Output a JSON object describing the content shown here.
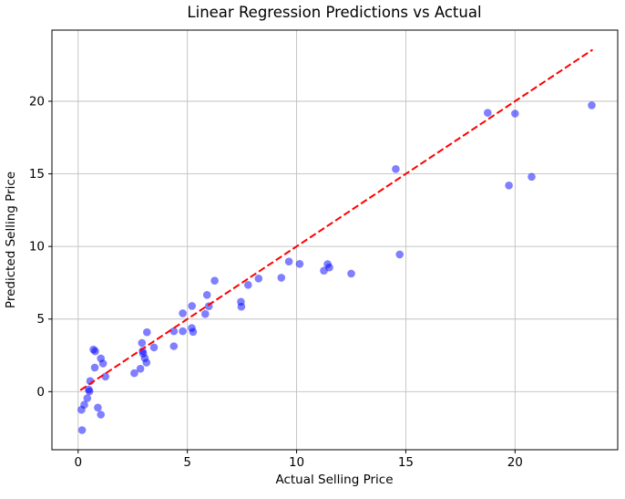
{
  "figure": {
    "title": "Linear Regression Predictions vs Actual",
    "xlabel": "Actual Selling Price",
    "ylabel": "Predicted Selling Price"
  },
  "colors": {
    "point_fill": "#0000ff",
    "point_alpha": 0.5,
    "reference_line": "#ff0000",
    "grid": "#c0c0c0",
    "spine": "#000000",
    "background": "#ffffff"
  },
  "chart_data": {
    "type": "scatter",
    "title": "Linear Regression Predictions vs Actual",
    "xlabel": "Actual Selling Price",
    "ylabel": "Predicted Selling Price",
    "xlim": [
      -1.2,
      24.7
    ],
    "ylim": [
      -4.0,
      24.9
    ],
    "xticks": [
      0,
      5,
      10,
      15,
      20
    ],
    "yticks": [
      0,
      5,
      10,
      15,
      20
    ],
    "grid": true,
    "legend": "none",
    "series": [
      {
        "name": "predicted-vs-actual-points",
        "marker": "circle",
        "color": "#0000ff",
        "alpha": 0.5,
        "points": [
          [
            0.7,
            2.9
          ],
          [
            0.78,
            2.78
          ],
          [
            1.04,
            2.29
          ],
          [
            1.14,
            1.94
          ],
          [
            0.76,
            1.66
          ],
          [
            1.25,
            1.04
          ],
          [
            0.55,
            0.73
          ],
          [
            0.48,
            0.15
          ],
          [
            0.52,
            0.03
          ],
          [
            0.42,
            -0.45
          ],
          [
            0.28,
            -0.9
          ],
          [
            0.15,
            -1.25
          ],
          [
            0.9,
            -1.1
          ],
          [
            1.04,
            -1.58
          ],
          [
            0.18,
            -2.65
          ],
          [
            3.15,
            4.09
          ],
          [
            2.92,
            3.36
          ],
          [
            3.47,
            3.05
          ],
          [
            2.95,
            2.8
          ],
          [
            2.98,
            2.62
          ],
          [
            3.05,
            2.31
          ],
          [
            3.13,
            2.0
          ],
          [
            2.85,
            1.58
          ],
          [
            2.57,
            1.27
          ],
          [
            4.38,
            4.16
          ],
          [
            4.79,
            4.16
          ],
          [
            5.2,
            4.38
          ],
          [
            5.26,
            4.12
          ],
          [
            4.38,
            3.13
          ],
          [
            4.79,
            5.4
          ],
          [
            5.21,
            5.9
          ],
          [
            5.98,
            5.88
          ],
          [
            5.82,
            5.35
          ],
          [
            5.9,
            6.66
          ],
          [
            6.25,
            7.64
          ],
          [
            7.45,
            6.19
          ],
          [
            7.47,
            5.85
          ],
          [
            7.78,
            7.35
          ],
          [
            8.26,
            7.79
          ],
          [
            9.3,
            7.85
          ],
          [
            9.65,
            8.96
          ],
          [
            10.14,
            8.8
          ],
          [
            11.25,
            8.33
          ],
          [
            11.42,
            8.78
          ],
          [
            11.5,
            8.55
          ],
          [
            12.5,
            8.13
          ],
          [
            14.54,
            15.33
          ],
          [
            14.72,
            9.45
          ],
          [
            18.75,
            19.2
          ],
          [
            20.0,
            19.15
          ],
          [
            19.72,
            14.2
          ],
          [
            20.76,
            14.8
          ],
          [
            23.51,
            19.72
          ]
        ]
      }
    ],
    "reference_line": {
      "name": "identity-line-y-equals-x",
      "style": "dashed",
      "color": "#ff0000",
      "from": [
        0.1,
        0.1
      ],
      "to": [
        23.55,
        23.55
      ]
    }
  }
}
